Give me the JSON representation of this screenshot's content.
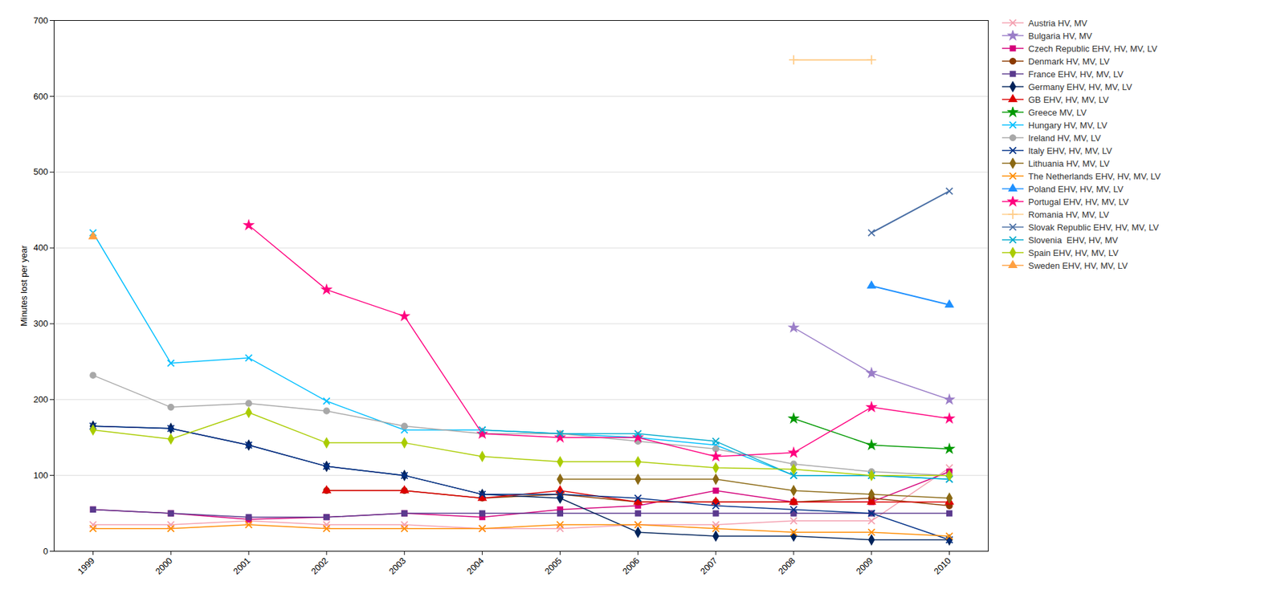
{
  "chart_data": {
    "type": "line",
    "y_label": "Minutes lost per year",
    "x": [
      1999,
      2000,
      2001,
      2002,
      2003,
      2004,
      2005,
      2006,
      2007,
      2008,
      2009,
      2010
    ],
    "xlim": [
      1998.5,
      2010.5
    ],
    "xticks": [
      1999,
      2000,
      2001,
      2002,
      2003,
      2004,
      2005,
      2006,
      2007,
      2008,
      2009,
      2010
    ],
    "ylim": [
      0,
      700
    ],
    "yticks": [
      0,
      100,
      200,
      300,
      400,
      500,
      600,
      700
    ],
    "grid": true,
    "legend": "right",
    "series": [
      {
        "name": "Austria HV, MV",
        "color": "#F4A0B0",
        "marker": "x",
        "values": [
          35,
          35,
          40,
          35,
          35,
          30,
          30,
          35,
          35,
          40,
          40,
          110
        ]
      },
      {
        "name": "Bulgaria HV, MV",
        "color": "#9B7EC8",
        "marker": "star",
        "values": [
          null,
          null,
          null,
          null,
          null,
          null,
          null,
          null,
          null,
          295,
          235,
          200
        ]
      },
      {
        "name": "Czech Republic EHV, HV, MV, LV",
        "color": "#D4007A",
        "marker": "square",
        "values": [
          55,
          50,
          42,
          45,
          50,
          45,
          55,
          60,
          80,
          65,
          65,
          105
        ]
      },
      {
        "name": "Denmark HV, MV, LV",
        "color": "#8B3A00",
        "marker": "circle",
        "values": [
          null,
          null,
          null,
          80,
          80,
          70,
          75,
          65,
          65,
          65,
          70,
          60
        ]
      },
      {
        "name": "France EHV, HV, MV, LV",
        "color": "#5B3A8E",
        "marker": "square",
        "values": [
          55,
          50,
          45,
          45,
          50,
          50,
          50,
          50,
          50,
          50,
          50,
          50
        ]
      },
      {
        "name": "Germany EHV, HV, MV, LV",
        "color": "#00235B",
        "marker": "diamond",
        "values": [
          165,
          162,
          140,
          112,
          100,
          75,
          70,
          25,
          20,
          20,
          15,
          15
        ]
      },
      {
        "name": "GB EHV, HV, MV, LV",
        "color": "#DD0000",
        "marker": "triangle",
        "values": [
          null,
          null,
          null,
          80,
          80,
          70,
          80,
          65,
          65,
          65,
          65,
          65
        ]
      },
      {
        "name": "Greece MV, LV",
        "color": "#009900",
        "marker": "star",
        "values": [
          null,
          null,
          null,
          null,
          null,
          null,
          null,
          null,
          null,
          175,
          140,
          135
        ]
      },
      {
        "name": "Hungary HV, MV, LV",
        "color": "#00BFFF",
        "marker": "x",
        "values": [
          420,
          248,
          255,
          198,
          160,
          160,
          155,
          150,
          140,
          100,
          100,
          95
        ]
      },
      {
        "name": "Ireland HV, MV, LV",
        "color": "#A8A8A8",
        "marker": "circle",
        "values": [
          232,
          190,
          195,
          185,
          165,
          155,
          155,
          145,
          135,
          115,
          105,
          100
        ]
      },
      {
        "name": "Italy EHV, HV, MV, LV",
        "color": "#003087",
        "marker": "x",
        "values": [
          165,
          162,
          140,
          112,
          100,
          75,
          75,
          70,
          60,
          55,
          50,
          15
        ]
      },
      {
        "name": "Lithuania HV, MV, LV",
        "color": "#8B6914",
        "marker": "diamond",
        "values": [
          null,
          null,
          null,
          null,
          null,
          null,
          95,
          95,
          95,
          80,
          75,
          70
        ]
      },
      {
        "name": "The Netherlands EHV, HV, MV, LV",
        "color": "#FF8C00",
        "marker": "x",
        "values": [
          30,
          30,
          35,
          30,
          30,
          30,
          35,
          35,
          30,
          25,
          25,
          20
        ]
      },
      {
        "name": "Poland EHV, HV, MV, LV",
        "color": "#1E90FF",
        "marker": "triangle",
        "values": [
          null,
          null,
          null,
          null,
          null,
          null,
          null,
          null,
          null,
          null,
          350,
          325
        ]
      },
      {
        "name": "Portugal EHV, HV, MV, LV",
        "color": "#FF007F",
        "marker": "star",
        "values": [
          null,
          null,
          430,
          345,
          310,
          155,
          150,
          150,
          125,
          130,
          190,
          175
        ]
      },
      {
        "name": "Romania HV, MV, LV",
        "color": "#FFCC88",
        "marker": "plus",
        "values": [
          null,
          null,
          null,
          null,
          null,
          null,
          null,
          null,
          null,
          648,
          648,
          null
        ]
      },
      {
        "name": "Slovak Republic EHV, HV, MV, LV",
        "color": "#4A6FA5",
        "marker": "x",
        "values": [
          null,
          null,
          null,
          null,
          null,
          null,
          null,
          null,
          null,
          null,
          420,
          475
        ]
      },
      {
        "name": "Slovenia  EHV, HV, MV",
        "color": "#00AACC",
        "marker": "x",
        "values": [
          null,
          null,
          null,
          null,
          null,
          160,
          155,
          155,
          145,
          100,
          100,
          95
        ]
      },
      {
        "name": "Spain EHV, HV, MV, LV",
        "color": "#AACC00",
        "marker": "diamond",
        "values": [
          160,
          148,
          183,
          143,
          143,
          125,
          118,
          118,
          110,
          108,
          100,
          100
        ]
      },
      {
        "name": "Sweden EHV, HV, MV, LV",
        "color": "#FFA040",
        "marker": "triangle",
        "values": [
          415,
          null,
          null,
          null,
          null,
          null,
          null,
          null,
          null,
          null,
          null,
          null
        ]
      }
    ]
  }
}
